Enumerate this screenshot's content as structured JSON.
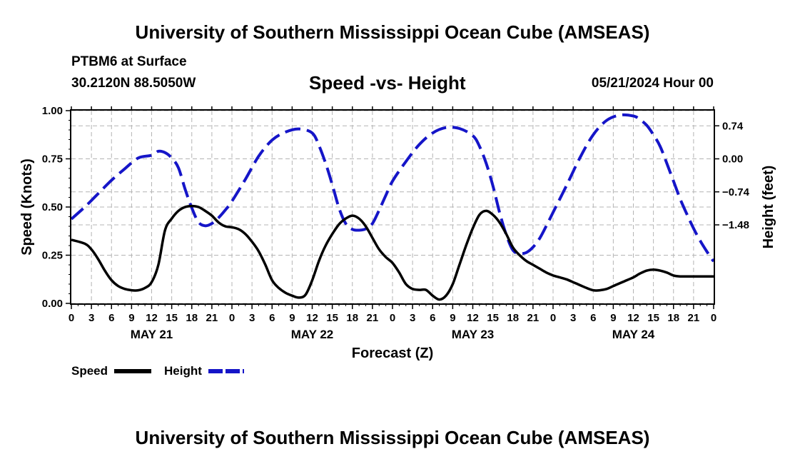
{
  "header": {
    "title": "University of Southern Mississippi Ocean Cube (AMSEAS)",
    "station": "PTBM6 at Surface",
    "coords": "30.2120N  88.5050W",
    "chart_title": "Speed -vs- Height",
    "date": "05/21/2024 Hour 00"
  },
  "footer": {
    "title": "University of Southern Mississippi Ocean Cube (AMSEAS)"
  },
  "colors": {
    "speed": "#000000",
    "height": "#1515c8",
    "grid": "#b4b4b4"
  },
  "chart_data": {
    "type": "line",
    "title": "Speed -vs- Height",
    "xlabel": "Forecast (Z)",
    "ylabel": "Speed (Knots)",
    "y2label": "Height (feet)",
    "xlim": [
      0,
      96
    ],
    "ylim": [
      0,
      1.0
    ],
    "y2lim": [
      -3.24,
      1.08
    ],
    "yticks": [
      "0.00",
      "0.25",
      "0.50",
      "0.75",
      "1.00"
    ],
    "y2ticks": [
      {
        "value": 0.74,
        "label": "0.74"
      },
      {
        "value": 0.0,
        "label": "0.00"
      },
      {
        "value": -0.74,
        "label": "−0.74"
      },
      {
        "value": -1.48,
        "label": "−1.48"
      }
    ],
    "x_tick_labels": [
      "0",
      "3",
      "6",
      "9",
      "12",
      "15",
      "18",
      "21",
      "0",
      "3",
      "6",
      "9",
      "12",
      "15",
      "18",
      "21",
      "0",
      "3",
      "6",
      "9",
      "12",
      "15",
      "18",
      "21",
      "0",
      "3",
      "6",
      "9",
      "12",
      "15",
      "18",
      "21",
      "0"
    ],
    "day_labels": [
      {
        "label": "MAY 21",
        "hour": 12
      },
      {
        "label": "MAY 22",
        "hour": 36
      },
      {
        "label": "MAY 23",
        "hour": 60
      },
      {
        "label": "MAY 24",
        "hour": 84
      }
    ],
    "grid": true,
    "legend": "bottom-left",
    "series": [
      {
        "name": "Speed",
        "axis": "left",
        "style": "solid",
        "x": [
          0,
          2,
          3,
          4,
          5,
          6,
          7,
          8,
          9,
          10,
          11,
          12,
          13,
          14,
          15,
          16,
          17,
          18,
          19,
          20,
          21,
          22,
          23,
          24,
          25,
          26,
          27,
          28,
          29,
          30,
          31,
          32,
          33,
          34,
          35,
          36,
          37,
          38,
          39,
          40,
          41,
          42,
          43,
          44,
          45,
          46,
          47,
          48,
          49,
          50,
          51,
          52,
          53,
          54,
          55,
          56,
          57,
          58,
          59,
          60,
          61,
          62,
          63,
          64,
          65,
          66,
          67,
          68,
          69,
          70,
          71,
          72,
          73,
          74,
          75,
          76,
          77,
          78,
          79,
          80,
          81,
          82,
          83,
          84,
          85,
          86,
          87,
          88,
          89,
          90,
          91,
          92,
          93,
          94,
          95,
          96
        ],
        "values": [
          0.33,
          0.31,
          0.28,
          0.23,
          0.17,
          0.12,
          0.09,
          0.075,
          0.068,
          0.068,
          0.08,
          0.11,
          0.2,
          0.38,
          0.44,
          0.48,
          0.5,
          0.505,
          0.5,
          0.48,
          0.455,
          0.42,
          0.4,
          0.395,
          0.385,
          0.36,
          0.32,
          0.27,
          0.2,
          0.12,
          0.08,
          0.055,
          0.04,
          0.03,
          0.045,
          0.12,
          0.22,
          0.3,
          0.36,
          0.41,
          0.44,
          0.455,
          0.44,
          0.4,
          0.34,
          0.28,
          0.24,
          0.21,
          0.16,
          0.1,
          0.075,
          0.07,
          0.07,
          0.04,
          0.02,
          0.04,
          0.1,
          0.2,
          0.3,
          0.39,
          0.46,
          0.48,
          0.46,
          0.42,
          0.36,
          0.29,
          0.25,
          0.22,
          0.2,
          0.18,
          0.16,
          0.145,
          0.135,
          0.125,
          0.11,
          0.095,
          0.08,
          0.068,
          0.068,
          0.075,
          0.09,
          0.105,
          0.12,
          0.135,
          0.155,
          0.17,
          0.175,
          0.17,
          0.16,
          0.145,
          0.14,
          0.14,
          0.14,
          0.14,
          0.14,
          0.14
        ]
      },
      {
        "name": "Height",
        "axis": "right",
        "style": "dashed",
        "x": [
          0,
          2,
          4,
          6,
          8,
          10,
          12,
          13,
          14,
          15,
          16,
          17,
          18,
          19,
          20,
          21,
          22,
          23,
          24,
          26,
          28,
          30,
          32,
          34,
          36,
          37,
          38,
          39,
          40,
          41,
          42,
          43,
          44,
          45,
          46,
          47,
          48,
          50,
          52,
          54,
          56,
          58,
          60,
          61,
          62,
          63,
          64,
          65,
          66,
          67,
          68,
          69,
          70,
          71,
          72,
          74,
          76,
          78,
          80,
          82,
          84,
          85,
          86,
          87,
          88,
          89,
          90,
          91,
          92,
          93,
          94,
          95,
          96
        ],
        "values": [
          -1.35,
          -1.08,
          -0.78,
          -0.48,
          -0.22,
          0.02,
          0.08,
          0.17,
          0.14,
          0.02,
          -0.2,
          -0.68,
          -1.1,
          -1.42,
          -1.5,
          -1.45,
          -1.32,
          -1.15,
          -0.95,
          -0.46,
          0.06,
          0.42,
          0.6,
          0.67,
          0.58,
          0.3,
          -0.1,
          -0.58,
          -1.1,
          -1.45,
          -1.58,
          -1.6,
          -1.57,
          -1.45,
          -1.15,
          -0.82,
          -0.5,
          -0.06,
          0.32,
          0.58,
          0.7,
          0.68,
          0.52,
          0.28,
          -0.1,
          -0.6,
          -1.2,
          -1.7,
          -2.05,
          -2.12,
          -2.1,
          -1.98,
          -1.78,
          -1.5,
          -1.2,
          -0.6,
          0.02,
          0.54,
          0.86,
          0.98,
          0.96,
          0.88,
          0.75,
          0.54,
          0.28,
          -0.1,
          -0.5,
          -0.9,
          -1.24,
          -1.56,
          -1.84,
          -2.08,
          -2.3
        ]
      }
    ]
  }
}
